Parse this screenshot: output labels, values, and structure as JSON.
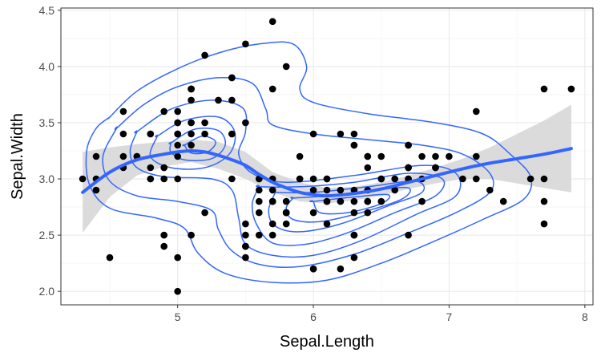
{
  "chart_data": {
    "type": "scatter",
    "xlabel": "Sepal.Length",
    "ylabel": "Sepal.Width",
    "xlim": [
      4.14,
      8.06
    ],
    "ylim": [
      1.88,
      4.52
    ],
    "x_ticks": [
      "5",
      "6",
      "7",
      "8"
    ],
    "x_tick_values": [
      5,
      6,
      7,
      8
    ],
    "y_ticks": [
      "2.0",
      "2.5",
      "3.0",
      "3.5",
      "4.0",
      "4.5"
    ],
    "y_tick_values": [
      2.0,
      2.5,
      3.0,
      3.5,
      4.0,
      4.5
    ],
    "grid": true,
    "colors": {
      "points": "#000000",
      "smooth": "#3366ff",
      "contours": "#3366ff",
      "ribbon": "#d9d9d9",
      "grid_major": "#ebebeb",
      "grid_minor": "#f5f5f5",
      "panel_border": "#333333"
    },
    "points": [
      [
        5.1,
        3.5
      ],
      [
        4.9,
        3.0
      ],
      [
        4.7,
        3.2
      ],
      [
        4.6,
        3.1
      ],
      [
        5.0,
        3.6
      ],
      [
        5.4,
        3.9
      ],
      [
        4.6,
        3.4
      ],
      [
        5.0,
        3.4
      ],
      [
        4.4,
        2.9
      ],
      [
        4.9,
        3.1
      ],
      [
        5.4,
        3.7
      ],
      [
        4.8,
        3.4
      ],
      [
        4.8,
        3.0
      ],
      [
        4.3,
        3.0
      ],
      [
        5.8,
        4.0
      ],
      [
        5.7,
        4.4
      ],
      [
        5.4,
        3.9
      ],
      [
        5.1,
        3.5
      ],
      [
        5.7,
        3.8
      ],
      [
        5.1,
        3.8
      ],
      [
        5.4,
        3.4
      ],
      [
        5.1,
        3.7
      ],
      [
        4.6,
        3.6
      ],
      [
        5.1,
        3.3
      ],
      [
        4.8,
        3.4
      ],
      [
        5.0,
        3.0
      ],
      [
        5.0,
        3.4
      ],
      [
        5.2,
        3.5
      ],
      [
        5.2,
        3.4
      ],
      [
        4.7,
        3.2
      ],
      [
        4.8,
        3.1
      ],
      [
        5.4,
        3.4
      ],
      [
        5.2,
        4.1
      ],
      [
        5.5,
        4.2
      ],
      [
        4.9,
        3.1
      ],
      [
        5.0,
        3.2
      ],
      [
        5.5,
        3.5
      ],
      [
        4.9,
        3.6
      ],
      [
        4.4,
        3.0
      ],
      [
        5.1,
        3.4
      ],
      [
        5.0,
        3.5
      ],
      [
        4.5,
        2.3
      ],
      [
        4.4,
        3.2
      ],
      [
        5.0,
        3.5
      ],
      [
        5.1,
        3.8
      ],
      [
        4.8,
        3.0
      ],
      [
        5.1,
        3.8
      ],
      [
        4.6,
        3.2
      ],
      [
        5.3,
        3.7
      ],
      [
        5.0,
        3.3
      ],
      [
        7.0,
        3.2
      ],
      [
        6.4,
        3.2
      ],
      [
        6.9,
        3.1
      ],
      [
        5.5,
        2.3
      ],
      [
        6.5,
        2.8
      ],
      [
        5.7,
        2.8
      ],
      [
        6.3,
        3.3
      ],
      [
        4.9,
        2.4
      ],
      [
        6.6,
        2.9
      ],
      [
        5.2,
        2.7
      ],
      [
        5.0,
        2.0
      ],
      [
        5.9,
        3.0
      ],
      [
        6.0,
        2.2
      ],
      [
        6.1,
        2.9
      ],
      [
        5.6,
        2.9
      ],
      [
        6.7,
        3.1
      ],
      [
        5.6,
        3.0
      ],
      [
        5.8,
        2.7
      ],
      [
        6.2,
        2.2
      ],
      [
        5.6,
        2.5
      ],
      [
        5.9,
        3.2
      ],
      [
        6.1,
        2.8
      ],
      [
        6.3,
        2.5
      ],
      [
        6.1,
        2.8
      ],
      [
        6.4,
        2.9
      ],
      [
        6.6,
        3.0
      ],
      [
        6.8,
        2.8
      ],
      [
        6.7,
        3.0
      ],
      [
        6.0,
        2.9
      ],
      [
        5.7,
        2.6
      ],
      [
        5.5,
        2.4
      ],
      [
        5.5,
        2.4
      ],
      [
        5.8,
        2.7
      ],
      [
        6.0,
        2.7
      ],
      [
        5.4,
        3.0
      ],
      [
        6.0,
        3.4
      ],
      [
        6.7,
        3.1
      ],
      [
        6.3,
        2.3
      ],
      [
        5.6,
        3.0
      ],
      [
        5.5,
        2.5
      ],
      [
        5.5,
        2.6
      ],
      [
        6.1,
        3.0
      ],
      [
        5.8,
        2.6
      ],
      [
        5.0,
        2.3
      ],
      [
        5.6,
        2.7
      ],
      [
        5.7,
        3.0
      ],
      [
        5.7,
        2.9
      ],
      [
        6.2,
        2.9
      ],
      [
        5.1,
        2.5
      ],
      [
        5.7,
        2.8
      ],
      [
        6.3,
        3.3
      ],
      [
        5.8,
        2.7
      ],
      [
        7.1,
        3.0
      ],
      [
        6.3,
        2.9
      ],
      [
        6.5,
        3.0
      ],
      [
        7.6,
        3.0
      ],
      [
        4.9,
        2.5
      ],
      [
        7.3,
        2.9
      ],
      [
        6.7,
        2.5
      ],
      [
        7.2,
        3.6
      ],
      [
        6.5,
        3.2
      ],
      [
        6.4,
        2.7
      ],
      [
        6.8,
        3.0
      ],
      [
        5.7,
        2.5
      ],
      [
        5.8,
        2.8
      ],
      [
        6.4,
        3.2
      ],
      [
        6.5,
        3.0
      ],
      [
        7.7,
        3.8
      ],
      [
        7.7,
        2.6
      ],
      [
        6.0,
        2.2
      ],
      [
        6.9,
        3.2
      ],
      [
        5.6,
        2.8
      ],
      [
        7.7,
        2.8
      ],
      [
        6.3,
        2.7
      ],
      [
        6.7,
        3.3
      ],
      [
        7.2,
        3.2
      ],
      [
        6.2,
        2.8
      ],
      [
        6.1,
        3.0
      ],
      [
        6.4,
        2.8
      ],
      [
        7.2,
        3.0
      ],
      [
        7.4,
        2.8
      ],
      [
        7.9,
        3.8
      ],
      [
        6.4,
        2.8
      ],
      [
        6.3,
        2.8
      ],
      [
        6.1,
        2.6
      ],
      [
        7.7,
        3.0
      ],
      [
        6.3,
        3.4
      ],
      [
        6.4,
        3.1
      ],
      [
        6.0,
        3.0
      ],
      [
        6.9,
        3.1
      ],
      [
        6.7,
        3.1
      ],
      [
        6.9,
        3.1
      ],
      [
        5.8,
        2.7
      ],
      [
        6.8,
        3.2
      ],
      [
        6.7,
        3.3
      ],
      [
        6.7,
        3.0
      ],
      [
        6.3,
        2.5
      ],
      [
        6.5,
        3.0
      ],
      [
        6.2,
        3.4
      ],
      [
        5.9,
        3.0
      ]
    ],
    "smooth_line": [
      [
        4.3,
        2.88
      ],
      [
        4.5,
        3.06
      ],
      [
        4.7,
        3.17
      ],
      [
        4.9,
        3.22
      ],
      [
        5.0,
        3.24
      ],
      [
        5.1,
        3.25
      ],
      [
        5.2,
        3.24
      ],
      [
        5.3,
        3.21
      ],
      [
        5.4,
        3.17
      ],
      [
        5.5,
        3.12
      ],
      [
        5.6,
        3.04
      ],
      [
        5.7,
        2.97
      ],
      [
        5.8,
        2.92
      ],
      [
        5.9,
        2.88
      ],
      [
        6.0,
        2.86
      ],
      [
        6.1,
        2.85
      ],
      [
        6.3,
        2.87
      ],
      [
        6.5,
        2.91
      ],
      [
        6.7,
        2.97
      ],
      [
        6.9,
        3.03
      ],
      [
        7.1,
        3.09
      ],
      [
        7.3,
        3.14
      ],
      [
        7.5,
        3.18
      ],
      [
        7.7,
        3.22
      ],
      [
        7.9,
        3.27
      ]
    ],
    "ribbon_upper": [
      [
        4.3,
        3.24
      ],
      [
        4.5,
        3.28
      ],
      [
        4.7,
        3.31
      ],
      [
        4.9,
        3.33
      ],
      [
        5.1,
        3.35
      ],
      [
        5.3,
        3.33
      ],
      [
        5.5,
        3.24
      ],
      [
        5.7,
        3.06
      ],
      [
        5.9,
        2.97
      ],
      [
        6.1,
        2.92
      ],
      [
        6.3,
        2.93
      ],
      [
        6.5,
        2.97
      ],
      [
        6.7,
        3.03
      ],
      [
        6.9,
        3.1
      ],
      [
        7.1,
        3.18
      ],
      [
        7.3,
        3.28
      ],
      [
        7.5,
        3.4
      ],
      [
        7.7,
        3.52
      ],
      [
        7.9,
        3.66
      ]
    ],
    "ribbon_lower": [
      [
        4.3,
        2.52
      ],
      [
        4.5,
        2.84
      ],
      [
        4.7,
        3.03
      ],
      [
        4.9,
        3.11
      ],
      [
        5.1,
        3.15
      ],
      [
        5.3,
        3.09
      ],
      [
        5.5,
        3.0
      ],
      [
        5.7,
        2.88
      ],
      [
        5.9,
        2.8
      ],
      [
        6.1,
        2.78
      ],
      [
        6.3,
        2.81
      ],
      [
        6.5,
        2.85
      ],
      [
        6.7,
        2.91
      ],
      [
        6.9,
        2.96
      ],
      [
        7.1,
        3.0
      ],
      [
        7.3,
        3.0
      ],
      [
        7.5,
        2.96
      ],
      [
        7.7,
        2.92
      ],
      [
        7.9,
        2.88
      ]
    ],
    "contours": [
      [
        [
          4.5,
          3.55
        ],
        [
          4.7,
          3.78
        ],
        [
          5.0,
          3.98
        ],
        [
          5.3,
          4.12
        ],
        [
          5.6,
          4.2
        ],
        [
          5.85,
          4.2
        ],
        [
          5.95,
          4.0
        ],
        [
          5.9,
          3.8
        ],
        [
          6.0,
          3.68
        ],
        [
          6.4,
          3.58
        ],
        [
          6.9,
          3.5
        ],
        [
          7.25,
          3.4
        ],
        [
          7.45,
          3.22
        ],
        [
          7.6,
          3.02
        ],
        [
          7.55,
          2.82
        ],
        [
          7.25,
          2.64
        ],
        [
          6.9,
          2.45
        ],
        [
          6.5,
          2.25
        ],
        [
          6.1,
          2.1
        ],
        [
          5.7,
          2.08
        ],
        [
          5.35,
          2.16
        ],
        [
          5.15,
          2.34
        ],
        [
          5.05,
          2.56
        ],
        [
          4.85,
          2.65
        ],
        [
          4.5,
          2.74
        ],
        [
          4.35,
          2.95
        ],
        [
          4.33,
          3.25
        ],
        [
          4.4,
          3.45
        ],
        [
          4.5,
          3.55
        ]
      ],
      [
        [
          4.55,
          3.45
        ],
        [
          4.75,
          3.66
        ],
        [
          5.0,
          3.82
        ],
        [
          5.3,
          3.9
        ],
        [
          5.55,
          3.85
        ],
        [
          5.65,
          3.62
        ],
        [
          5.7,
          3.48
        ],
        [
          6.0,
          3.4
        ],
        [
          6.4,
          3.35
        ],
        [
          6.8,
          3.3
        ],
        [
          7.1,
          3.22
        ],
        [
          7.3,
          3.05
        ],
        [
          7.3,
          2.88
        ],
        [
          7.05,
          2.7
        ],
        [
          6.7,
          2.52
        ],
        [
          6.3,
          2.33
        ],
        [
          5.9,
          2.22
        ],
        [
          5.6,
          2.24
        ],
        [
          5.4,
          2.36
        ],
        [
          5.3,
          2.55
        ],
        [
          5.25,
          2.72
        ],
        [
          5.0,
          2.8
        ],
        [
          4.7,
          2.85
        ],
        [
          4.5,
          2.98
        ],
        [
          4.45,
          3.2
        ],
        [
          4.55,
          3.45
        ]
      ],
      [
        [
          4.7,
          3.42
        ],
        [
          4.95,
          3.62
        ],
        [
          5.25,
          3.7
        ],
        [
          5.48,
          3.63
        ],
        [
          5.5,
          3.42
        ],
        [
          5.45,
          3.22
        ],
        [
          5.55,
          3.05
        ],
        [
          5.8,
          2.97
        ],
        [
          6.3,
          3.03
        ],
        [
          6.8,
          3.12
        ],
        [
          7.05,
          3.05
        ],
        [
          7.05,
          2.85
        ],
        [
          6.75,
          2.68
        ],
        [
          6.35,
          2.45
        ],
        [
          6.0,
          2.32
        ],
        [
          5.7,
          2.32
        ],
        [
          5.5,
          2.42
        ],
        [
          5.45,
          2.65
        ],
        [
          5.4,
          2.9
        ],
        [
          5.25,
          3.0
        ],
        [
          4.9,
          3.02
        ],
        [
          4.7,
          3.1
        ],
        [
          4.65,
          3.25
        ],
        [
          4.7,
          3.42
        ]
      ],
      [
        [
          4.85,
          3.38
        ],
        [
          5.05,
          3.52
        ],
        [
          5.3,
          3.55
        ],
        [
          5.42,
          3.42
        ],
        [
          5.38,
          3.22
        ],
        [
          5.2,
          3.1
        ],
        [
          4.95,
          3.1
        ],
        [
          4.8,
          3.2
        ],
        [
          4.85,
          3.38
        ]
      ],
      [
        [
          5.6,
          2.93
        ],
        [
          5.9,
          2.93
        ],
        [
          6.3,
          2.97
        ],
        [
          6.7,
          3.05
        ],
        [
          6.95,
          3.0
        ],
        [
          6.9,
          2.85
        ],
        [
          6.6,
          2.7
        ],
        [
          6.25,
          2.52
        ],
        [
          5.95,
          2.42
        ],
        [
          5.7,
          2.43
        ],
        [
          5.58,
          2.6
        ],
        [
          5.55,
          2.78
        ],
        [
          5.6,
          2.93
        ]
      ],
      [
        [
          4.95,
          3.32
        ],
        [
          5.12,
          3.44
        ],
        [
          5.3,
          3.43
        ],
        [
          5.35,
          3.3
        ],
        [
          5.25,
          3.18
        ],
        [
          5.05,
          3.17
        ],
        [
          4.95,
          3.24
        ],
        [
          4.95,
          3.32
        ]
      ],
      [
        [
          5.72,
          2.88
        ],
        [
          6.0,
          2.88
        ],
        [
          6.4,
          2.93
        ],
        [
          6.75,
          2.98
        ],
        [
          6.8,
          2.88
        ],
        [
          6.55,
          2.76
        ],
        [
          6.2,
          2.6
        ],
        [
          5.9,
          2.53
        ],
        [
          5.72,
          2.58
        ],
        [
          5.67,
          2.72
        ],
        [
          5.72,
          2.88
        ]
      ],
      [
        [
          5.05,
          3.3
        ],
        [
          5.18,
          3.38
        ],
        [
          5.28,
          3.33
        ],
        [
          5.22,
          3.24
        ],
        [
          5.1,
          3.23
        ],
        [
          5.05,
          3.3
        ]
      ],
      [
        [
          5.85,
          2.83
        ],
        [
          6.1,
          2.85
        ],
        [
          6.45,
          2.9
        ],
        [
          6.7,
          2.92
        ],
        [
          6.65,
          2.82
        ],
        [
          6.35,
          2.7
        ],
        [
          6.05,
          2.62
        ],
        [
          5.85,
          2.64
        ],
        [
          5.8,
          2.74
        ],
        [
          5.85,
          2.83
        ]
      ],
      [
        [
          6.0,
          2.8
        ],
        [
          6.3,
          2.84
        ],
        [
          6.55,
          2.86
        ],
        [
          6.5,
          2.78
        ],
        [
          6.25,
          2.7
        ],
        [
          6.05,
          2.7
        ],
        [
          6.0,
          2.8
        ]
      ]
    ]
  }
}
